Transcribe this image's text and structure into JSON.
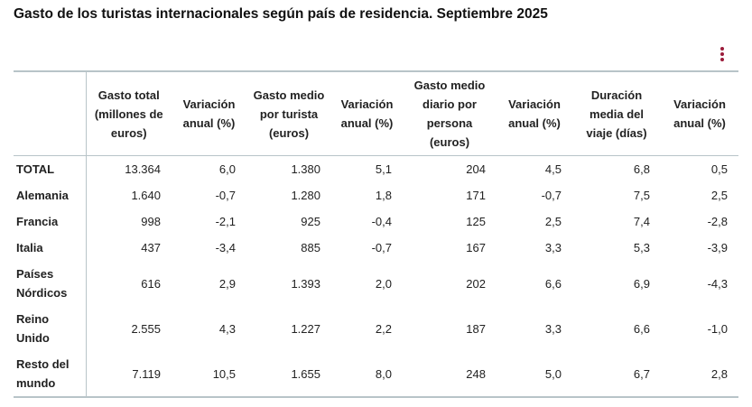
{
  "title": "Gasto de los turistas internacionales según país de residencia. Septiembre 2025",
  "menu_icon": "vertical-ellipsis-icon",
  "accent_color": "#9b1b3a",
  "table": {
    "headers": [
      "",
      "Gasto total (millones de euros)",
      "Variación anual (%)",
      "Gasto medio por turista (euros)",
      "Variación anual (%)",
      "Gasto medio diario por persona (euros)",
      "Variación anual (%)",
      "Duración media del viaje (días)",
      "Variación anual (%)"
    ],
    "rows": [
      {
        "label": "TOTAL",
        "values": [
          "13.364",
          "6,0",
          "1.380",
          "5,1",
          "204",
          "4,5",
          "6,8",
          "0,5"
        ]
      },
      {
        "label": "Alemania",
        "values": [
          "1.640",
          "-0,7",
          "1.280",
          "1,8",
          "171",
          "-0,7",
          "7,5",
          "2,5"
        ]
      },
      {
        "label": "Francia",
        "values": [
          "998",
          "-2,1",
          "925",
          "-0,4",
          "125",
          "2,5",
          "7,4",
          "-2,8"
        ]
      },
      {
        "label": "Italia",
        "values": [
          "437",
          "-3,4",
          "885",
          "-0,7",
          "167",
          "3,3",
          "5,3",
          "-3,9"
        ]
      },
      {
        "label": "Países Nórdicos",
        "values": [
          "616",
          "2,9",
          "1.393",
          "2,0",
          "202",
          "6,6",
          "6,9",
          "-4,3"
        ]
      },
      {
        "label": "Reino Unido",
        "values": [
          "2.555",
          "4,3",
          "1.227",
          "2,2",
          "187",
          "3,3",
          "6,6",
          "-1,0"
        ]
      },
      {
        "label": "Resto del mundo",
        "values": [
          "7.119",
          "10,5",
          "1.655",
          "8,0",
          "248",
          "5,0",
          "6,7",
          "2,8"
        ]
      }
    ]
  }
}
